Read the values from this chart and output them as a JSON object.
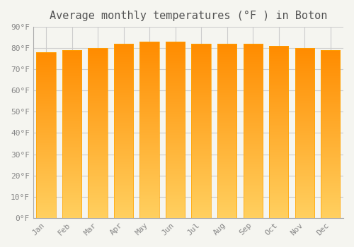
{
  "title": "Average monthly temperatures (°F ) in Boton",
  "months": [
    "Jan",
    "Feb",
    "Mar",
    "Apr",
    "May",
    "Jun",
    "Jul",
    "Aug",
    "Sep",
    "Oct",
    "Nov",
    "Dec"
  ],
  "values": [
    78,
    79,
    80,
    82,
    83,
    83,
    82,
    82,
    82,
    81,
    80,
    79
  ],
  "bar_color_bottom": "#FFD060",
  "bar_color_top": "#FF8C00",
  "bar_edge_color": "#FFA500",
  "background_color": "#F5F5F0",
  "grid_color": "#CCCCCC",
  "ylim": [
    0,
    90
  ],
  "yticks": [
    0,
    10,
    20,
    30,
    40,
    50,
    60,
    70,
    80,
    90
  ],
  "ytick_labels": [
    "0°F",
    "10°F",
    "20°F",
    "30°F",
    "40°F",
    "50°F",
    "60°F",
    "70°F",
    "80°F",
    "90°F"
  ],
  "title_fontsize": 11,
  "tick_fontsize": 8,
  "font_family": "monospace"
}
